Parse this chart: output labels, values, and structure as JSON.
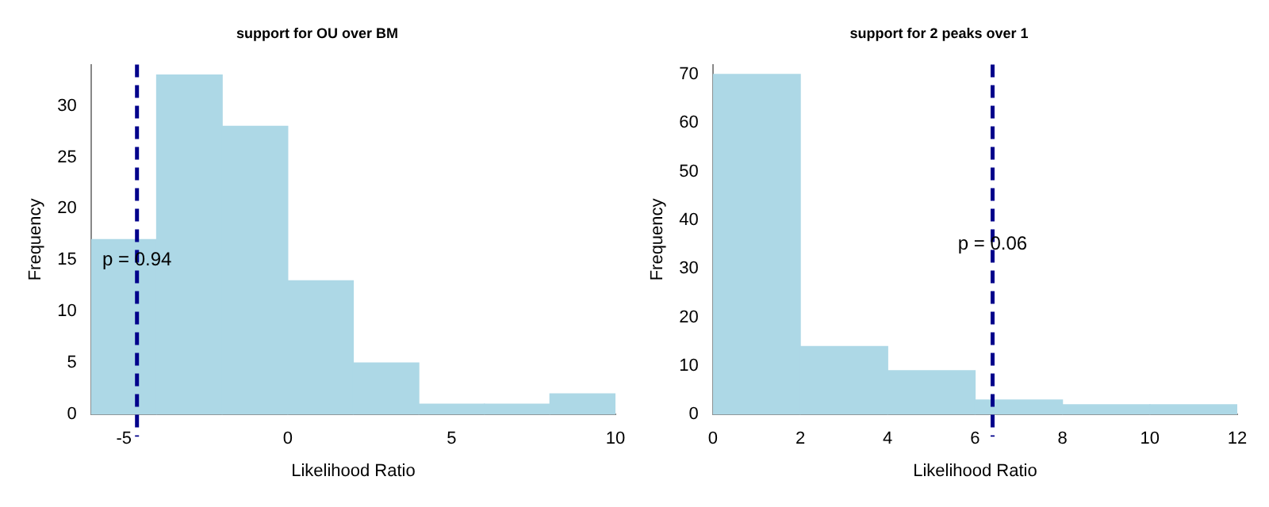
{
  "chart_data": [
    {
      "type": "histogram",
      "title": "support for OU over BM",
      "xlabel": "Likelihood Ratio",
      "ylabel": "Frequency",
      "bins": [
        -6,
        -4,
        -2,
        0,
        2,
        4,
        6,
        8,
        10
      ],
      "values": [
        17,
        33,
        28,
        13,
        5,
        1,
        1,
        2
      ],
      "color": "#add8e6",
      "xlim": [
        -6,
        10
      ],
      "xticks": [
        -5,
        0,
        5,
        10
      ],
      "ylim": [
        0,
        34
      ],
      "yticks": [
        0,
        5,
        10,
        15,
        20,
        25,
        30
      ],
      "grid": false,
      "ref_lines": [
        {
          "axis": "x",
          "value": -4.6,
          "color": "#00008b",
          "line_style": "dashed"
        }
      ],
      "annotations": [
        {
          "text": "p = 0.94",
          "x": -4.6,
          "y": 15
        }
      ]
    },
    {
      "type": "histogram",
      "title": "support for 2 peaks over 1",
      "xlabel": "Likelihood Ratio",
      "ylabel": "Frequency",
      "bins": [
        0,
        2,
        4,
        6,
        8,
        10,
        12
      ],
      "values": [
        70,
        14,
        9,
        3,
        2,
        2
      ],
      "color": "#add8e6",
      "xlim": [
        0,
        12
      ],
      "xticks": [
        0,
        2,
        4,
        6,
        8,
        10,
        12
      ],
      "ylim": [
        0,
        72
      ],
      "yticks": [
        0,
        10,
        20,
        30,
        40,
        50,
        60,
        70
      ],
      "grid": false,
      "ref_lines": [
        {
          "axis": "x",
          "value": 6.4,
          "color": "#00008b",
          "line_style": "dashed"
        }
      ],
      "annotations": [
        {
          "text": "p = 0.06",
          "x": 6.4,
          "y": 35
        }
      ]
    }
  ]
}
